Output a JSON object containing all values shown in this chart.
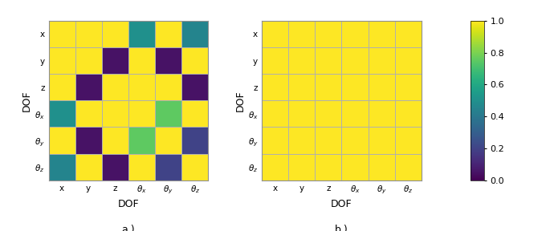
{
  "matrix_a": [
    [
      1.0,
      1.0,
      1.0,
      0.5,
      1.0,
      0.45
    ],
    [
      1.0,
      1.0,
      0.05,
      1.0,
      0.05,
      1.0
    ],
    [
      1.0,
      0.05,
      1.0,
      1.0,
      1.0,
      0.05
    ],
    [
      0.5,
      1.0,
      1.0,
      1.0,
      0.75,
      1.0
    ],
    [
      1.0,
      0.05,
      1.0,
      0.75,
      1.0,
      0.2
    ],
    [
      0.45,
      1.0,
      0.05,
      1.0,
      0.2,
      1.0
    ]
  ],
  "matrix_b": [
    [
      1.0,
      1.0,
      1.0,
      1.0,
      1.0,
      1.0
    ],
    [
      1.0,
      1.0,
      1.0,
      1.0,
      1.0,
      1.0
    ],
    [
      1.0,
      1.0,
      1.0,
      1.0,
      1.0,
      1.0
    ],
    [
      1.0,
      1.0,
      1.0,
      1.0,
      1.0,
      1.0
    ],
    [
      1.0,
      1.0,
      1.0,
      1.0,
      1.0,
      1.0
    ],
    [
      1.0,
      1.0,
      1.0,
      1.0,
      1.0,
      1.0
    ]
  ],
  "tick_labels": [
    "x",
    "y",
    "z",
    "$\\theta_x$",
    "$\\theta_y$",
    "$\\theta_z$"
  ],
  "xlabel": "DOF",
  "ylabel": "DOF",
  "label_a": "a.)",
  "label_b": "b.)",
  "cmap": "viridis",
  "vmin": 0,
  "vmax": 1,
  "colorbar_ticks": [
    0,
    0.2,
    0.4,
    0.6,
    0.8,
    1.0
  ],
  "figsize": [
    6.85,
    2.88
  ],
  "dpi": 100,
  "grid_color": "#c8c8c8",
  "bg_color": "#f0f0f0"
}
